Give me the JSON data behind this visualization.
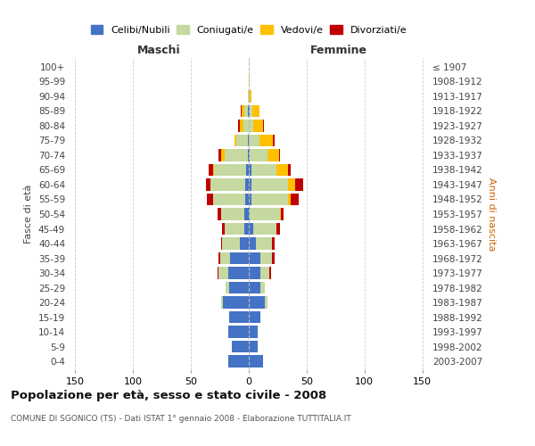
{
  "age_groups": [
    "0-4",
    "5-9",
    "10-14",
    "15-19",
    "20-24",
    "25-29",
    "30-34",
    "35-39",
    "40-44",
    "45-49",
    "50-54",
    "55-59",
    "60-64",
    "65-69",
    "70-74",
    "75-79",
    "80-84",
    "85-89",
    "90-94",
    "95-99",
    "100+"
  ],
  "birth_years": [
    "2003-2007",
    "1998-2002",
    "1993-1997",
    "1988-1992",
    "1983-1987",
    "1978-1982",
    "1973-1977",
    "1968-1972",
    "1963-1967",
    "1958-1962",
    "1953-1957",
    "1948-1952",
    "1943-1947",
    "1938-1942",
    "1933-1937",
    "1928-1932",
    "1923-1927",
    "1918-1922",
    "1913-1917",
    "1908-1912",
    "≤ 1907"
  ],
  "males": {
    "celibi": [
      18,
      15,
      18,
      17,
      22,
      17,
      18,
      16,
      8,
      4,
      4,
      3,
      3,
      2,
      1,
      1,
      0,
      1,
      0,
      0,
      0
    ],
    "coniugati": [
      0,
      0,
      0,
      0,
      2,
      3,
      8,
      9,
      15,
      17,
      20,
      28,
      30,
      28,
      20,
      10,
      5,
      3,
      1,
      0,
      0
    ],
    "vedovi": [
      0,
      0,
      0,
      0,
      0,
      0,
      0,
      0,
      0,
      0,
      0,
      0,
      0,
      1,
      3,
      1,
      3,
      2,
      0,
      0,
      0
    ],
    "divorziati": [
      0,
      0,
      0,
      0,
      0,
      0,
      1,
      1,
      1,
      2,
      3,
      5,
      4,
      4,
      2,
      0,
      1,
      1,
      0,
      0,
      0
    ]
  },
  "females": {
    "nubili": [
      12,
      8,
      8,
      10,
      14,
      10,
      10,
      10,
      6,
      4,
      1,
      2,
      2,
      2,
      1,
      0,
      0,
      1,
      0,
      0,
      0
    ],
    "coniugate": [
      0,
      0,
      0,
      0,
      2,
      4,
      8,
      10,
      14,
      20,
      26,
      32,
      32,
      22,
      15,
      9,
      4,
      2,
      0,
      0,
      0
    ],
    "vedove": [
      0,
      0,
      0,
      0,
      0,
      0,
      0,
      0,
      0,
      0,
      1,
      2,
      6,
      10,
      10,
      12,
      8,
      6,
      2,
      1,
      0
    ],
    "divorziate": [
      0,
      0,
      0,
      0,
      0,
      0,
      1,
      2,
      2,
      3,
      2,
      7,
      7,
      2,
      1,
      1,
      1,
      0,
      0,
      0,
      0
    ]
  },
  "colors": {
    "celibi": "#4472c4",
    "coniugati": "#c5d9a0",
    "vedovi": "#ffc000",
    "divorziati": "#c00000"
  },
  "xlim": 155,
  "xticks": [
    -150,
    -100,
    -50,
    0,
    50,
    100,
    150
  ],
  "title": "Popolazione per età, sesso e stato civile - 2008",
  "subtitle": "COMUNE DI SGONICO (TS) - Dati ISTAT 1° gennaio 2008 - Elaborazione TUTTITALIA.IT",
  "ylabel_left": "Fasce di età",
  "ylabel_right": "Anni di nascita",
  "xlabel_left": "Maschi",
  "xlabel_right": "Femmine",
  "background_color": "#ffffff",
  "grid_color": "#cccccc",
  "legend_labels": [
    "Celibi/Nubili",
    "Coniugati/e",
    "Vedovi/e",
    "Divorziati/e"
  ]
}
